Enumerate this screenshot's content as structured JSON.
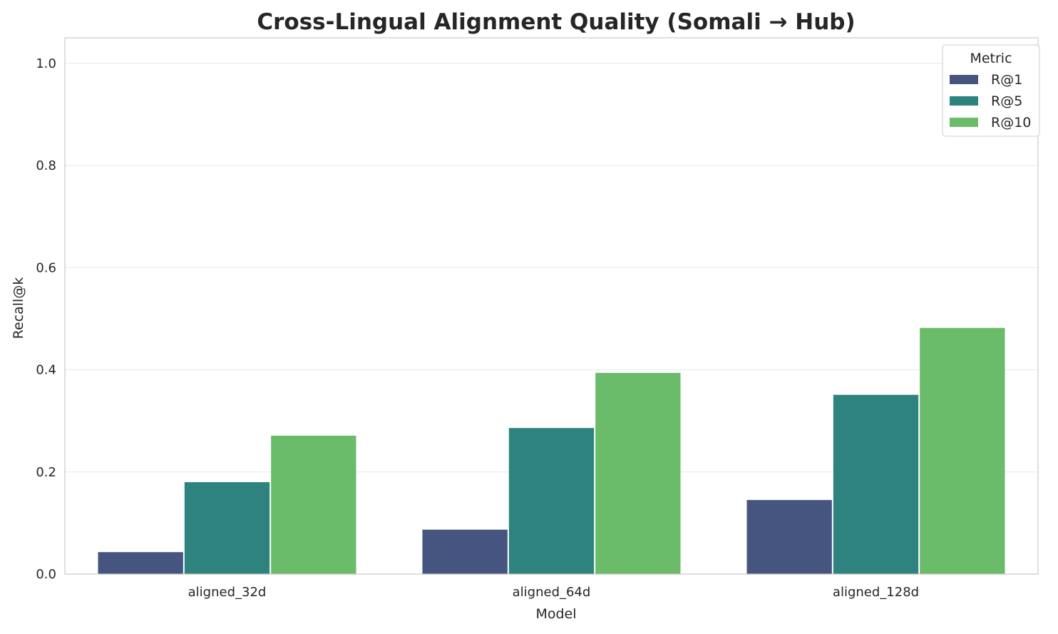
{
  "chart_data": {
    "type": "bar",
    "title": "Cross-Lingual Alignment Quality (Somali → Hub)",
    "xlabel": "Model",
    "ylabel": "Recall@k",
    "ylim": [
      0,
      1.05
    ],
    "yticks": [
      "0.0",
      "0.2",
      "0.4",
      "0.6",
      "0.8",
      "1.0"
    ],
    "grid": true,
    "categories": [
      "aligned_32d",
      "aligned_64d",
      "aligned_128d"
    ],
    "legend": {
      "title": "Metric",
      "placement": "top-right"
    },
    "series": [
      {
        "name": "R@1",
        "color": "#46557f",
        "values": [
          0.043,
          0.087,
          0.145
        ]
      },
      {
        "name": "R@5",
        "color": "#2e837e",
        "values": [
          0.18,
          0.286,
          0.351
        ]
      },
      {
        "name": "R@10",
        "color": "#6abc6b",
        "values": [
          0.271,
          0.394,
          0.482
        ]
      }
    ]
  }
}
